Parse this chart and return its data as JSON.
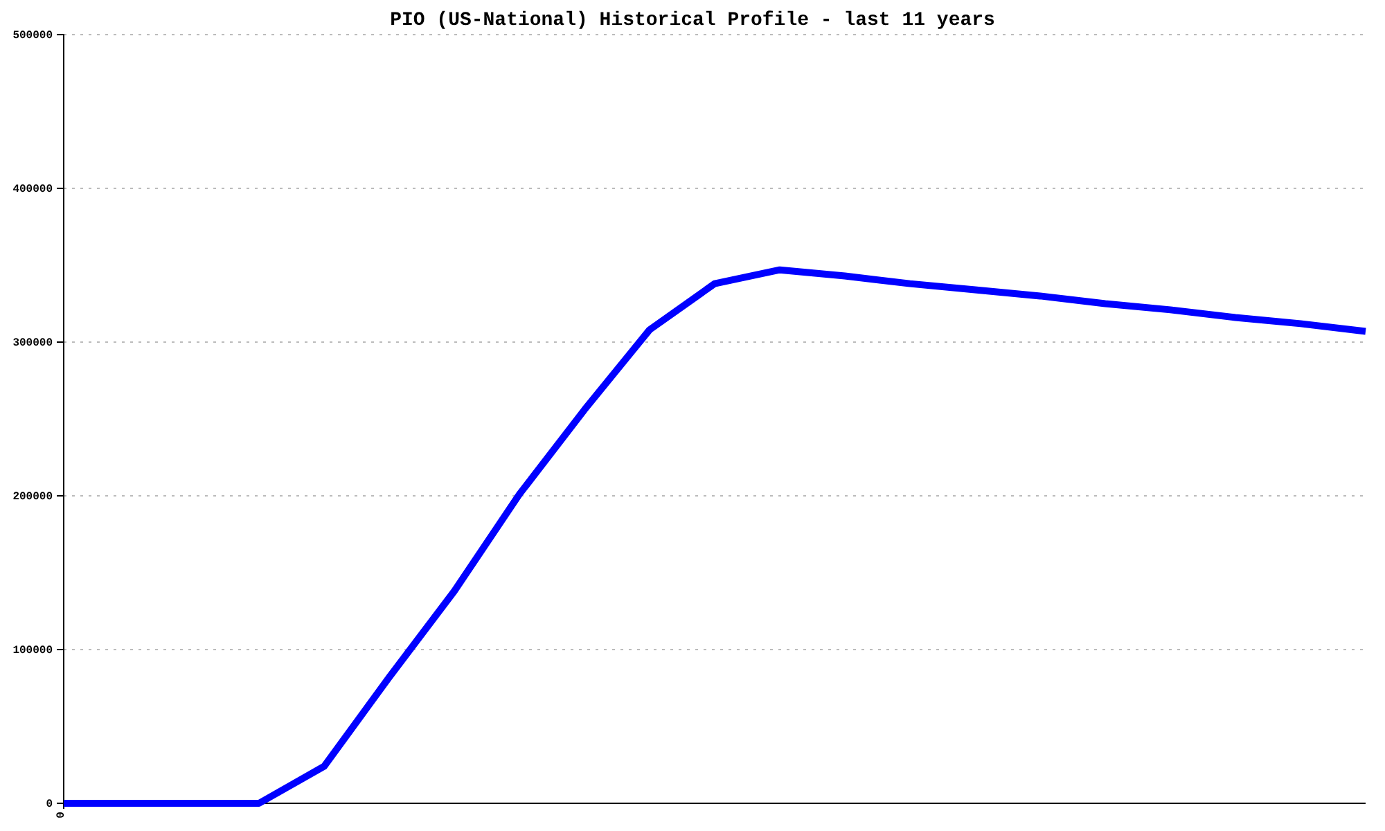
{
  "chart_data": {
    "type": "line",
    "title": "PIO (US-National) Historical Profile - last 11 years",
    "categories": [
      "0",
      null,
      null,
      null,
      null,
      null,
      null,
      null,
      null,
      null,
      null,
      null,
      null,
      null,
      null,
      null,
      null,
      null,
      null,
      null,
      null
    ],
    "series": [
      {
        "color": "#0000ff",
        "values": [
          0,
          0,
          0,
          0,
          24000,
          82000,
          138000,
          201000,
          256000,
          308000,
          338000,
          347000,
          343000,
          338000,
          334000,
          330000,
          325000,
          321000,
          316000,
          312000,
          307000
        ]
      }
    ],
    "ylim": [
      0,
      500000
    ],
    "yticks": [
      0,
      100000,
      200000,
      300000,
      400000,
      500000
    ],
    "grid": "y",
    "marker": "none",
    "line_style": "solid"
  }
}
